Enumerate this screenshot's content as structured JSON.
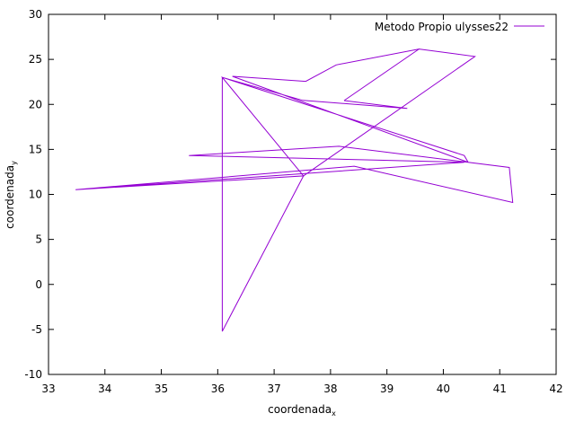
{
  "chart_data": {
    "type": "line",
    "title": "",
    "xlabel": {
      "base": "coordenada",
      "sub": "x"
    },
    "ylabel": {
      "base": "coordenada",
      "sub": "y"
    },
    "xlim": [
      33,
      42
    ],
    "ylim": [
      -10,
      30
    ],
    "x_ticks": [
      33,
      34,
      35,
      36,
      37,
      38,
      39,
      40,
      41,
      42
    ],
    "y_ticks": [
      -10,
      -5,
      0,
      5,
      10,
      15,
      20,
      25,
      30
    ],
    "grid": false,
    "legend_position": "top-right",
    "series": [
      {
        "name": "Metodo Propio ulysses22",
        "color": "#9400d3",
        "points": [
          [
            38.24,
            20.42
          ],
          [
            39.57,
            26.15
          ],
          [
            40.56,
            25.32
          ],
          [
            37.52,
            12.05
          ],
          [
            33.48,
            10.53
          ],
          [
            38.42,
            13.13
          ],
          [
            41.23,
            9.1
          ],
          [
            41.17,
            12.99
          ],
          [
            40.44,
            13.57
          ],
          [
            36.26,
            23.12
          ],
          [
            37.56,
            22.56
          ],
          [
            38.1,
            24.38
          ],
          [
            39.57,
            26.15
          ],
          [
            40.56,
            25.32
          ],
          [
            37.52,
            12.05
          ],
          [
            36.08,
            -5.21
          ],
          [
            36.08,
            23.0
          ],
          [
            40.37,
            14.32
          ],
          [
            40.44,
            13.57
          ],
          [
            38.15,
            15.35
          ],
          [
            35.49,
            14.32
          ],
          [
            40.37,
            13.57
          ],
          [
            33.48,
            10.53
          ],
          [
            37.52,
            12.05
          ],
          [
            36.08,
            23.0
          ],
          [
            37.51,
            20.44
          ],
          [
            39.36,
            19.56
          ],
          [
            38.24,
            20.42
          ]
        ]
      }
    ]
  }
}
